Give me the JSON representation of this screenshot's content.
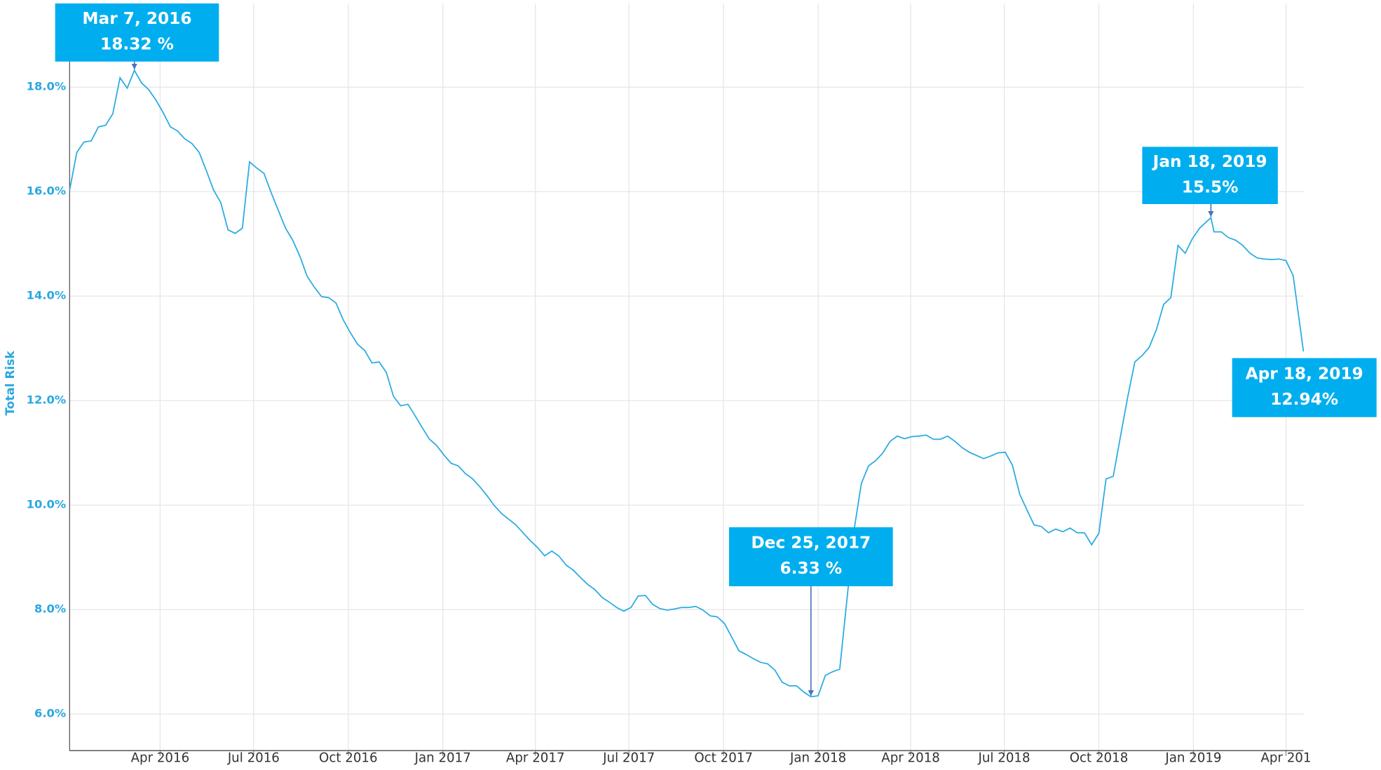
{
  "chart_data": {
    "type": "line",
    "y_label": "Total Risk",
    "color": "#29abe2",
    "grid": true,
    "xlim": [
      "2016-01-04",
      "2019-04-18"
    ],
    "ylim": [
      5.3,
      19.6
    ],
    "yticks": [
      {
        "value": 6,
        "label": "6.0%"
      },
      {
        "value": 8,
        "label": "8.0%"
      },
      {
        "value": 10,
        "label": "10.0%"
      },
      {
        "value": 12,
        "label": "12.0%"
      },
      {
        "value": 14,
        "label": "14.0%"
      },
      {
        "value": 16,
        "label": "16.0%"
      },
      {
        "value": 18,
        "label": "18.0%"
      }
    ],
    "xticks": [
      {
        "value": "2016-04-01",
        "label": "Apr 2016"
      },
      {
        "value": "2016-07-01",
        "label": "Jul 2016"
      },
      {
        "value": "2016-10-01",
        "label": "Oct 2016"
      },
      {
        "value": "2017-01-01",
        "label": "Jan 2017"
      },
      {
        "value": "2017-04-01",
        "label": "Apr 2017"
      },
      {
        "value": "2017-07-01",
        "label": "Jul 2017"
      },
      {
        "value": "2017-10-01",
        "label": "Oct 2017"
      },
      {
        "value": "2018-01-01",
        "label": "Jan 2018"
      },
      {
        "value": "2018-04-01",
        "label": "Apr 2018"
      },
      {
        "value": "2018-07-01",
        "label": "Jul 2018"
      },
      {
        "value": "2018-10-01",
        "label": "Oct 2018"
      },
      {
        "value": "2019-01-01",
        "label": "Jan 2019"
      },
      {
        "value": "2019-04-01",
        "label": "Apr 201"
      }
    ],
    "x": [
      "2016-01-04",
      "2016-01-11",
      "2016-01-18",
      "2016-01-25",
      "2016-02-01",
      "2016-02-08",
      "2016-02-15",
      "2016-02-22",
      "2016-02-29",
      "2016-03-07",
      "2016-03-14",
      "2016-03-21",
      "2016-03-28",
      "2016-04-04",
      "2016-04-11",
      "2016-04-18",
      "2016-04-25",
      "2016-05-02",
      "2016-05-09",
      "2016-05-16",
      "2016-05-23",
      "2016-05-30",
      "2016-06-06",
      "2016-06-13",
      "2016-06-20",
      "2016-06-27",
      "2016-07-04",
      "2016-07-11",
      "2016-07-18",
      "2016-07-25",
      "2016-08-01",
      "2016-08-08",
      "2016-08-15",
      "2016-08-22",
      "2016-08-29",
      "2016-09-05",
      "2016-09-12",
      "2016-09-19",
      "2016-09-26",
      "2016-10-03",
      "2016-10-10",
      "2016-10-17",
      "2016-10-24",
      "2016-10-31",
      "2016-11-07",
      "2016-11-14",
      "2016-11-21",
      "2016-11-28",
      "2016-12-05",
      "2016-12-12",
      "2016-12-19",
      "2016-12-26",
      "2017-01-02",
      "2017-01-09",
      "2017-01-16",
      "2017-01-23",
      "2017-01-30",
      "2017-02-06",
      "2017-02-13",
      "2017-02-20",
      "2017-02-27",
      "2017-03-06",
      "2017-03-13",
      "2017-03-20",
      "2017-03-27",
      "2017-04-03",
      "2017-04-10",
      "2017-04-17",
      "2017-04-24",
      "2017-05-01",
      "2017-05-08",
      "2017-05-15",
      "2017-05-22",
      "2017-05-29",
      "2017-06-05",
      "2017-06-12",
      "2017-06-19",
      "2017-06-26",
      "2017-07-03",
      "2017-07-10",
      "2017-07-17",
      "2017-07-24",
      "2017-07-31",
      "2017-08-07",
      "2017-08-14",
      "2017-08-21",
      "2017-08-28",
      "2017-09-04",
      "2017-09-11",
      "2017-09-18",
      "2017-09-25",
      "2017-10-02",
      "2017-10-09",
      "2017-10-16",
      "2017-10-23",
      "2017-10-30",
      "2017-11-06",
      "2017-11-13",
      "2017-11-20",
      "2017-11-27",
      "2017-12-04",
      "2017-12-11",
      "2017-12-18",
      "2017-12-25",
      "2018-01-01",
      "2018-01-08",
      "2018-01-15",
      "2018-01-22",
      "2018-01-29",
      "2018-02-05",
      "2018-02-12",
      "2018-02-19",
      "2018-02-26",
      "2018-03-05",
      "2018-03-12",
      "2018-03-19",
      "2018-03-26",
      "2018-04-02",
      "2018-04-09",
      "2018-04-16",
      "2018-04-23",
      "2018-04-30",
      "2018-05-07",
      "2018-05-14",
      "2018-05-21",
      "2018-05-28",
      "2018-06-04",
      "2018-06-11",
      "2018-06-18",
      "2018-06-25",
      "2018-07-02",
      "2018-07-09",
      "2018-07-16",
      "2018-07-23",
      "2018-07-30",
      "2018-08-06",
      "2018-08-13",
      "2018-08-20",
      "2018-08-27",
      "2018-09-03",
      "2018-09-10",
      "2018-09-17",
      "2018-09-24",
      "2018-10-01",
      "2018-10-08",
      "2018-10-15",
      "2018-10-22",
      "2018-10-29",
      "2018-11-05",
      "2018-11-12",
      "2018-11-19",
      "2018-11-26",
      "2018-12-03",
      "2018-12-10",
      "2018-12-17",
      "2018-12-24",
      "2018-12-31",
      "2019-01-07",
      "2019-01-18",
      "2019-01-21",
      "2019-01-28",
      "2019-02-04",
      "2019-02-11",
      "2019-02-18",
      "2019-02-25",
      "2019-03-04",
      "2019-03-11",
      "2019-03-18",
      "2019-03-25",
      "2019-04-01",
      "2019-04-08",
      "2019-04-18"
    ],
    "values": [
      16.03,
      16.75,
      16.95,
      16.97,
      17.24,
      17.27,
      17.49,
      18.18,
      17.98,
      18.32,
      18.08,
      17.95,
      17.75,
      17.51,
      17.24,
      17.16,
      17.01,
      16.92,
      16.75,
      16.4,
      16.03,
      15.79,
      15.27,
      15.2,
      15.3,
      16.57,
      16.45,
      16.35,
      15.98,
      15.64,
      15.3,
      15.07,
      14.76,
      14.38,
      14.17,
      13.99,
      13.97,
      13.87,
      13.55,
      13.3,
      13.08,
      12.96,
      12.72,
      12.74,
      12.54,
      12.08,
      11.9,
      11.93,
      11.71,
      11.48,
      11.26,
      11.14,
      10.96,
      10.8,
      10.75,
      10.6,
      10.5,
      10.35,
      10.18,
      9.99,
      9.84,
      9.73,
      9.62,
      9.47,
      9.32,
      9.19,
      9.03,
      9.12,
      9.02,
      8.85,
      8.75,
      8.61,
      8.48,
      8.38,
      8.23,
      8.14,
      8.04,
      7.97,
      8.04,
      8.26,
      8.27,
      8.1,
      8.02,
      7.99,
      8.01,
      8.04,
      8.04,
      8.06,
      7.99,
      7.88,
      7.86,
      7.73,
      7.47,
      7.21,
      7.14,
      7.06,
      6.99,
      6.96,
      6.84,
      6.61,
      6.54,
      6.54,
      6.42,
      6.33,
      6.35,
      6.74,
      6.81,
      6.86,
      8.19,
      9.53,
      10.41,
      10.75,
      10.85,
      11.0,
      11.22,
      11.32,
      11.27,
      11.31,
      11.32,
      11.34,
      11.26,
      11.26,
      11.32,
      11.22,
      11.1,
      11.01,
      10.95,
      10.89,
      10.94,
      11.0,
      11.01,
      10.76,
      10.21,
      9.91,
      9.62,
      9.59,
      9.47,
      9.54,
      9.49,
      9.56,
      9.47,
      9.47,
      9.24,
      9.46,
      10.5,
      10.55,
      11.31,
      12.06,
      12.74,
      12.86,
      13.02,
      13.36,
      13.84,
      13.97,
      14.97,
      14.82,
      15.1,
      15.3,
      15.5,
      15.23,
      15.23,
      15.12,
      15.07,
      14.97,
      14.82,
      14.73,
      14.71,
      14.7,
      14.71,
      14.68,
      14.39,
      12.94
    ],
    "annotations": [
      {
        "x": "2016-03-07",
        "y": 18.32,
        "date_label": "Mar 7, 2016",
        "value_label": "18.32 %"
      },
      {
        "x": "2017-12-25",
        "y": 6.33,
        "date_label": "Dec 25, 2017",
        "value_label": "6.33 %"
      },
      {
        "x": "2019-01-18",
        "y": 15.5,
        "date_label": "Jan 18, 2019",
        "value_label": "15.5%"
      },
      {
        "x": "2019-04-18",
        "y": 12.94,
        "date_label": "Apr 18, 2019",
        "value_label": "12.94%"
      }
    ]
  }
}
